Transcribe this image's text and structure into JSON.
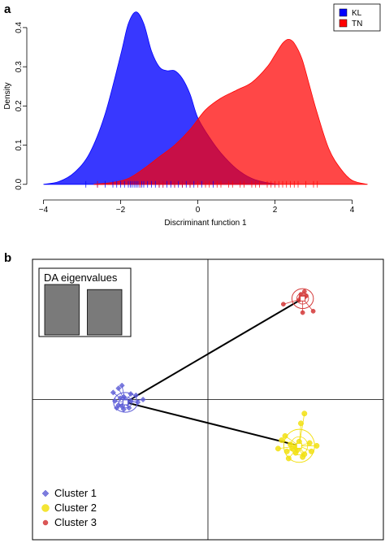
{
  "panels": {
    "a": "a",
    "b": "b"
  },
  "chart_data": [
    {
      "type": "area",
      "xlabel": "Discriminant function 1",
      "ylabel": "Density",
      "xlim": [
        -4.2,
        4.6
      ],
      "ylim": [
        -0.015,
        0.46
      ],
      "xticks": [
        -4,
        -2,
        0,
        2,
        4
      ],
      "yticks": [
        0.0,
        0.1,
        0.2,
        0.3,
        0.4
      ],
      "ytick_labels": [
        "0.0",
        "0.1",
        "0.2",
        "0.3",
        "0.4"
      ],
      "legend_position": "top-right",
      "series": [
        {
          "name": "KL",
          "color": "#0000ff",
          "x": [
            -4.0,
            -3.6,
            -3.2,
            -2.8,
            -2.4,
            -2.0,
            -1.8,
            -1.6,
            -1.4,
            -1.2,
            -1.0,
            -0.8,
            -0.6,
            -0.4,
            -0.2,
            0.0,
            0.3,
            0.6,
            1.0,
            1.4,
            1.8,
            2.1
          ],
          "y": [
            0.0,
            0.007,
            0.03,
            0.08,
            0.18,
            0.33,
            0.41,
            0.44,
            0.41,
            0.34,
            0.3,
            0.29,
            0.29,
            0.27,
            0.23,
            0.17,
            0.12,
            0.08,
            0.04,
            0.015,
            0.004,
            0.0
          ]
        },
        {
          "name": "TN",
          "color": "#ff0000",
          "x": [
            -2.7,
            -2.2,
            -1.8,
            -1.4,
            -1.0,
            -0.6,
            -0.2,
            0.2,
            0.6,
            1.0,
            1.4,
            1.8,
            2.0,
            2.2,
            2.35,
            2.5,
            2.7,
            2.9,
            3.1,
            3.4,
            3.7,
            4.0,
            4.4
          ],
          "y": [
            0.0,
            0.005,
            0.015,
            0.04,
            0.07,
            0.1,
            0.14,
            0.19,
            0.22,
            0.24,
            0.26,
            0.3,
            0.33,
            0.36,
            0.37,
            0.36,
            0.32,
            0.25,
            0.18,
            0.09,
            0.04,
            0.01,
            0.0
          ]
        }
      ],
      "rug": {
        "KL": [
          -2.9,
          -2.6,
          -2.4,
          -2.2,
          -2.1,
          -2.0,
          -1.9,
          -1.8,
          -1.75,
          -1.7,
          -1.65,
          -1.6,
          -1.55,
          -1.5,
          -1.45,
          -1.4,
          -1.3,
          -1.2,
          -1.1,
          -1.0,
          -0.9,
          -0.8,
          -0.7,
          -0.6,
          -0.5,
          -0.4,
          -0.3,
          -0.2,
          -0.1,
          0.1,
          0.4
        ],
        "TN": [
          -2.6,
          -1.5,
          -1.0,
          -0.9,
          -0.6,
          -0.4,
          -0.2,
          0.0,
          0.2,
          0.3,
          0.5,
          0.6,
          0.8,
          0.9,
          1.1,
          1.2,
          1.4,
          1.5,
          1.6,
          1.8,
          1.9,
          2.0,
          2.1,
          2.2,
          2.3,
          2.4,
          2.5,
          2.6,
          2.8,
          3.0,
          3.1
        ]
      }
    },
    {
      "type": "scatter",
      "legend_position": "bottom-left",
      "inset_title": "DA eigenvalues",
      "eigenvalues": [
        1.0,
        0.9
      ],
      "xlim": [
        -1,
        1
      ],
      "ylim": [
        -1,
        1
      ],
      "series": [
        {
          "name": "Cluster 1",
          "color": "#5b5bd6",
          "marker": "diamond",
          "centroid": [
            -0.47,
            -0.02
          ],
          "points": [
            [
              -0.54,
              0.05
            ],
            [
              -0.51,
              0.08
            ],
            [
              -0.49,
              0.1
            ],
            [
              -0.44,
              0.04
            ],
            [
              -0.41,
              0.03
            ],
            [
              -0.37,
              0.0
            ],
            [
              -0.4,
              -0.02
            ],
            [
              -0.45,
              -0.06
            ],
            [
              -0.48,
              -0.07
            ],
            [
              -0.51,
              -0.04
            ],
            [
              -0.53,
              -0.01
            ],
            [
              -0.49,
              -0.05
            ],
            [
              -0.47,
              0.0
            ],
            [
              -0.46,
              -0.03
            ],
            [
              -0.44,
              -0.01
            ],
            [
              -0.5,
              0.01
            ],
            [
              -0.48,
              0.02
            ],
            [
              -0.52,
              -0.06
            ]
          ]
        },
        {
          "name": "Cluster 2",
          "color": "#f2e010",
          "marker": "circle",
          "centroid": [
            0.52,
            -0.33
          ],
          "points": [
            [
              0.55,
              -0.1
            ],
            [
              0.53,
              -0.17
            ],
            [
              0.44,
              -0.26
            ],
            [
              0.42,
              -0.29
            ],
            [
              0.47,
              -0.32
            ],
            [
              0.52,
              -0.3
            ],
            [
              0.58,
              -0.31
            ],
            [
              0.62,
              -0.33
            ],
            [
              0.59,
              -0.37
            ],
            [
              0.55,
              -0.39
            ],
            [
              0.5,
              -0.38
            ],
            [
              0.45,
              -0.37
            ],
            [
              0.4,
              -0.35
            ],
            [
              0.46,
              -0.42
            ],
            [
              0.54,
              -0.41
            ],
            [
              0.5,
              -0.34
            ],
            [
              0.48,
              -0.35
            ],
            [
              0.51,
              -0.36
            ]
          ]
        },
        {
          "name": "Cluster 3",
          "color": "#d43a3a",
          "marker": "circle",
          "centroid": [
            0.54,
            0.72
          ],
          "points": [
            [
              0.55,
              0.77
            ],
            [
              0.53,
              0.75
            ],
            [
              0.56,
              0.74
            ],
            [
              0.52,
              0.71
            ],
            [
              0.54,
              0.72
            ],
            [
              0.43,
              0.68
            ],
            [
              0.54,
              0.62
            ],
            [
              0.6,
              0.63
            ],
            [
              0.55,
              0.73
            ],
            [
              0.53,
              0.73
            ]
          ]
        }
      ]
    }
  ]
}
